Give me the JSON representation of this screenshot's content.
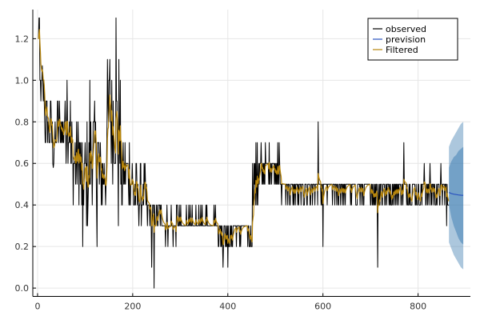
{
  "chart_data": {
    "type": "line",
    "title": "",
    "xlabel": "",
    "ylabel": "",
    "xlim": [
      -10,
      910
    ],
    "ylim": [
      -0.04,
      1.34
    ],
    "x_ticks": [
      0,
      200,
      400,
      600,
      800
    ],
    "y_ticks": [
      0.0,
      0.2,
      0.4,
      0.6,
      0.8,
      1.0,
      1.2
    ],
    "x_tick_labels": [
      "0",
      "200",
      "400",
      "600",
      "800"
    ],
    "y_tick_labels": [
      "0.0",
      "0.2",
      "0.4",
      "0.6",
      "0.8",
      "1.0",
      "1.2"
    ],
    "grid": true,
    "legend_position": "top-right",
    "observed_count": 865,
    "series": [
      {
        "name": "observed",
        "color": "#000000",
        "segments": [
          {
            "x_start": 1,
            "x_end": 5,
            "level": 1.2,
            "spread": 0.1
          },
          {
            "x_start": 5,
            "x_end": 15,
            "level": 0.95,
            "spread": 0.1
          },
          {
            "x_start": 15,
            "x_end": 30,
            "level": 0.78,
            "spread": 0.15
          },
          {
            "x_start": 30,
            "x_end": 40,
            "level": 0.68,
            "spread": 0.12
          },
          {
            "x_start": 40,
            "x_end": 70,
            "level": 0.78,
            "spread": 0.15
          },
          {
            "x_start": 70,
            "x_end": 90,
            "level": 0.62,
            "spread": 0.2
          },
          {
            "x_start": 90,
            "x_end": 110,
            "level": 0.55,
            "spread": 0.25
          },
          {
            "x_start": 110,
            "x_end": 130,
            "level": 0.65,
            "spread": 0.25
          },
          {
            "x_start": 130,
            "x_end": 145,
            "level": 0.55,
            "spread": 0.2
          },
          {
            "x_start": 145,
            "x_end": 175,
            "level": 0.8,
            "spread": 0.3
          },
          {
            "x_start": 175,
            "x_end": 200,
            "level": 0.55,
            "spread": 0.2
          },
          {
            "x_start": 200,
            "x_end": 230,
            "level": 0.45,
            "spread": 0.12
          },
          {
            "x_start": 230,
            "x_end": 260,
            "level": 0.35,
            "spread": 0.08
          },
          {
            "x_start": 260,
            "x_end": 300,
            "level": 0.31,
            "spread": 0.07
          },
          {
            "x_start": 300,
            "x_end": 380,
            "level": 0.31,
            "spread": 0.06
          },
          {
            "x_start": 380,
            "x_end": 440,
            "level": 0.27,
            "spread": 0.07
          },
          {
            "x_start": 440,
            "x_end": 452,
            "level": 0.25,
            "spread": 0.05
          },
          {
            "x_start": 452,
            "x_end": 470,
            "level": 0.52,
            "spread": 0.15
          },
          {
            "x_start": 470,
            "x_end": 510,
            "level": 0.58,
            "spread": 0.1
          },
          {
            "x_start": 510,
            "x_end": 700,
            "level": 0.48,
            "spread": 0.07
          },
          {
            "x_start": 700,
            "x_end": 865,
            "level": 0.48,
            "spread": 0.08
          }
        ],
        "spikes": [
          {
            "x": 3,
            "y": 1.3
          },
          {
            "x": 10,
            "y": 1.07
          },
          {
            "x": 33,
            "y": 0.58
          },
          {
            "x": 62,
            "y": 1.0
          },
          {
            "x": 95,
            "y": 0.2
          },
          {
            "x": 110,
            "y": 1.0
          },
          {
            "x": 125,
            "y": 0.2
          },
          {
            "x": 152,
            "y": 1.1
          },
          {
            "x": 165,
            "y": 1.3
          },
          {
            "x": 170,
            "y": 0.3
          },
          {
            "x": 240,
            "y": 0.1
          },
          {
            "x": 245,
            "y": 0.0
          },
          {
            "x": 285,
            "y": 0.2
          },
          {
            "x": 390,
            "y": 0.1
          },
          {
            "x": 400,
            "y": 0.1
          },
          {
            "x": 462,
            "y": 0.7
          },
          {
            "x": 505,
            "y": 0.7
          },
          {
            "x": 590,
            "y": 0.8
          },
          {
            "x": 600,
            "y": 0.2
          },
          {
            "x": 715,
            "y": 0.1
          },
          {
            "x": 770,
            "y": 0.7
          },
          {
            "x": 860,
            "y": 0.3
          }
        ]
      },
      {
        "name": "prevision",
        "color": "#2952bf",
        "x": [
          865,
          870,
          875,
          880,
          885,
          890,
          895
        ],
        "values": [
          0.46,
          0.455,
          0.452,
          0.45,
          0.448,
          0.447,
          0.446
        ],
        "band_inner": {
          "lower": [
            0.4,
            0.34,
            0.3,
            0.27,
            0.24,
            0.22,
            0.21
          ],
          "upper": [
            0.58,
            0.61,
            0.63,
            0.64,
            0.66,
            0.67,
            0.68
          ]
        },
        "band_outer": {
          "lower": [
            0.22,
            0.19,
            0.16,
            0.14,
            0.12,
            0.1,
            0.09
          ],
          "upper": [
            0.68,
            0.71,
            0.73,
            0.75,
            0.77,
            0.79,
            0.8
          ]
        },
        "band_color": "#4682b4"
      },
      {
        "name": "Filtered",
        "color": "#b8860b",
        "smoothing": 0.25
      }
    ]
  }
}
